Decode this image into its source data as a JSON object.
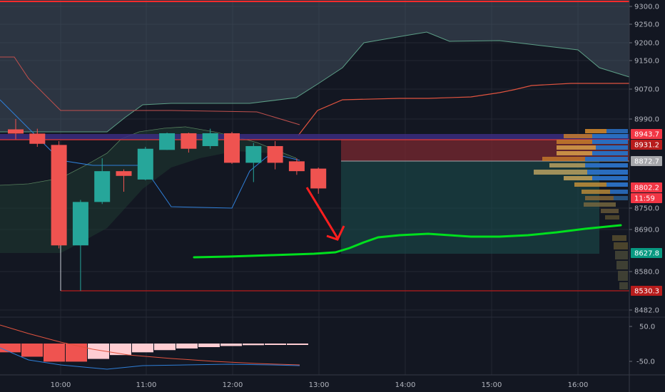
{
  "chart_data": {
    "type": "candlestick",
    "price_axis": {
      "ticks": [
        "9300.0",
        "9250.0",
        "9200.0",
        "9150.0",
        "9070.0",
        "8990.0",
        "8750.0",
        "8690.0",
        "8580.0",
        "8482.0"
      ],
      "ylim": [
        8450,
        9310
      ]
    },
    "oscillator_axis": {
      "ticks": [
        "50.0",
        "-50.0"
      ],
      "ylim": [
        -90,
        60
      ]
    },
    "time_axis": {
      "labels": [
        "10:00",
        "11:00",
        "12:00",
        "13:00",
        "14:00",
        "15:00",
        "16:00"
      ]
    },
    "candles": [
      {
        "o": 8958,
        "h": 8990,
        "l": 8930,
        "c": 8945
      },
      {
        "o": 8945,
        "h": 8960,
        "l": 8910,
        "c": 8918
      },
      {
        "o": 8915,
        "h": 8925,
        "l": 8640,
        "c": 8648
      },
      {
        "o": 8648,
        "h": 8770,
        "l": 8530,
        "c": 8765
      },
      {
        "o": 8765,
        "h": 8880,
        "l": 8760,
        "c": 8845
      },
      {
        "o": 8845,
        "h": 8850,
        "l": 8790,
        "c": 8832
      },
      {
        "o": 8822,
        "h": 8910,
        "l": 8820,
        "c": 8905
      },
      {
        "o": 8902,
        "h": 8948,
        "l": 8902,
        "c": 8946
      },
      {
        "o": 8946,
        "h": 8948,
        "l": 8895,
        "c": 8905
      },
      {
        "o": 8912,
        "h": 8960,
        "l": 8905,
        "c": 8946
      },
      {
        "o": 8946,
        "h": 8950,
        "l": 8865,
        "c": 8868
      },
      {
        "o": 8868,
        "h": 8920,
        "l": 8815,
        "c": 8912
      },
      {
        "o": 8912,
        "h": 8925,
        "l": 8850,
        "c": 8868
      },
      {
        "o": 8872,
        "h": 8880,
        "l": 8835,
        "c": 8845
      },
      {
        "o": 8852,
        "h": 8855,
        "l": 8785,
        "c": 8798
      }
    ],
    "price_tags": [
      {
        "label": "8943.7",
        "value": 8943.7,
        "color": "#f23645"
      },
      {
        "label": "8931.2",
        "value": 8931.2,
        "color": "#b71c1c"
      },
      {
        "label": "8872.7",
        "value": 8872.7,
        "color": "#a6a7ab",
        "text_color": "#131722"
      },
      {
        "label": "8802.2",
        "value": 8802.2,
        "color": "#f23645"
      },
      {
        "label": "11:59",
        "value": 8772,
        "color": "#f23645"
      },
      {
        "label": "8627.8",
        "value": 8627.8,
        "color": "#089981"
      },
      {
        "label": "8530.3",
        "value": 8530.3,
        "color": "#b71c1c"
      }
    ],
    "oscillator_histogram": [
      -32,
      -48,
      -66,
      -66,
      -56,
      -42,
      -32,
      -24,
      -18,
      -13,
      -9,
      -6,
      -5,
      -4
    ],
    "colors": {
      "up": "#26a69a",
      "down": "#ef5350",
      "forecast": "#00e01e",
      "arrow": "#ff1f1f",
      "resistance": "#ff2b2b"
    }
  }
}
